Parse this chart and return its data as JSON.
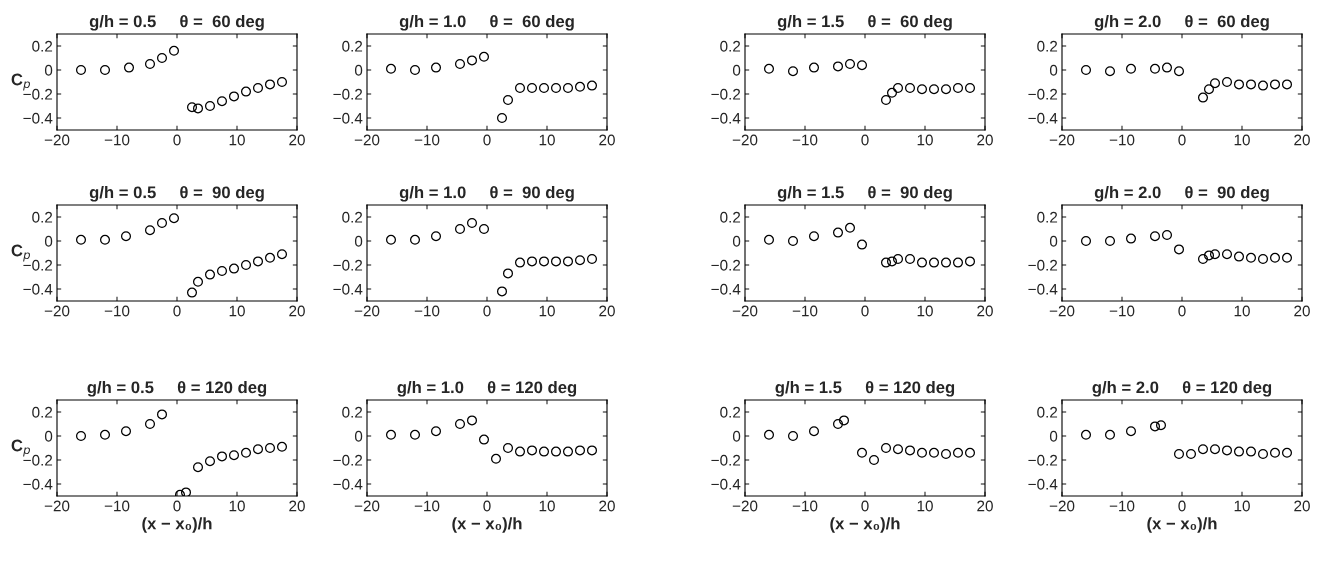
{
  "chart_data": [
    {
      "type": "scatter",
      "title": "g/h = 0.5     θ =  60 deg",
      "ylabel": "C$_{p}$",
      "xlim": [
        -20,
        20
      ],
      "xticks": [
        -20,
        -10,
        0,
        10,
        20
      ],
      "ylim": [
        -0.5,
        0.3
      ],
      "yticks": [
        -0.4,
        -0.2,
        0,
        0.2
      ],
      "marker": "circle",
      "grid": false,
      "legend": false,
      "series": [
        {
          "color": "#000000",
          "x": [
            -16,
            -12,
            -8,
            -4.5,
            -2.5,
            -0.5,
            2.5,
            3.5,
            5.5,
            7.5,
            9.5,
            11.5,
            13.5,
            15.5,
            17.5
          ],
          "values": [
            0.0,
            0.0,
            0.02,
            0.05,
            0.1,
            0.16,
            -0.31,
            -0.32,
            -0.3,
            -0.26,
            -0.22,
            -0.18,
            -0.15,
            -0.12,
            -0.1
          ]
        }
      ]
    },
    {
      "type": "scatter",
      "title": "g/h = 1.0     θ =  60 deg",
      "xlim": [
        -20,
        20
      ],
      "xticks": [
        -20,
        -10,
        0,
        10,
        20
      ],
      "ylim": [
        -0.5,
        0.3
      ],
      "yticks": [
        -0.4,
        -0.2,
        0,
        0.2
      ],
      "marker": "circle",
      "grid": false,
      "legend": false,
      "series": [
        {
          "color": "#000000",
          "x": [
            -16,
            -12,
            -8.5,
            -4.5,
            -2.5,
            -0.5,
            2.5,
            3.5,
            5.5,
            7.5,
            9.5,
            11.5,
            13.5,
            15.5,
            17.5
          ],
          "values": [
            0.01,
            0.0,
            0.02,
            0.05,
            0.08,
            0.11,
            -0.4,
            -0.25,
            -0.15,
            -0.15,
            -0.15,
            -0.15,
            -0.15,
            -0.14,
            -0.13
          ]
        }
      ]
    },
    {
      "type": "scatter",
      "title": "g/h = 1.5     θ =  60 deg",
      "xlim": [
        -20,
        20
      ],
      "xticks": [
        -20,
        -10,
        0,
        10,
        20
      ],
      "ylim": [
        -0.5,
        0.3
      ],
      "yticks": [
        -0.4,
        -0.2,
        0,
        0.2
      ],
      "marker": "circle",
      "grid": false,
      "legend": false,
      "series": [
        {
          "color": "#000000",
          "x": [
            -16,
            -12,
            -8.5,
            -4.5,
            -2.5,
            -0.5,
            3.5,
            4.5,
            5.5,
            7.5,
            9.5,
            11.5,
            13.5,
            15.5,
            17.5
          ],
          "values": [
            0.01,
            -0.01,
            0.02,
            0.03,
            0.05,
            0.04,
            -0.25,
            -0.19,
            -0.15,
            -0.15,
            -0.16,
            -0.16,
            -0.16,
            -0.15,
            -0.15
          ]
        }
      ]
    },
    {
      "type": "scatter",
      "title": "g/h = 2.0     θ =  60 deg",
      "xlim": [
        -20,
        20
      ],
      "xticks": [
        -20,
        -10,
        0,
        10,
        20
      ],
      "ylim": [
        -0.5,
        0.3
      ],
      "yticks": [
        -0.4,
        -0.2,
        0,
        0.2
      ],
      "marker": "circle",
      "grid": false,
      "legend": false,
      "series": [
        {
          "color": "#000000",
          "x": [
            -16,
            -12,
            -8.5,
            -4.5,
            -2.5,
            -0.5,
            3.5,
            4.5,
            5.5,
            7.5,
            9.5,
            11.5,
            13.5,
            15.5,
            17.5
          ],
          "values": [
            0.0,
            -0.01,
            0.01,
            0.01,
            0.02,
            -0.01,
            -0.23,
            -0.16,
            -0.11,
            -0.1,
            -0.12,
            -0.12,
            -0.13,
            -0.12,
            -0.12
          ]
        }
      ]
    },
    {
      "type": "scatter",
      "title": "g/h = 0.5     θ =  90 deg",
      "ylabel": "C$_{p}$",
      "xlim": [
        -20,
        20
      ],
      "xticks": [
        -20,
        -10,
        0,
        10,
        20
      ],
      "ylim": [
        -0.5,
        0.3
      ],
      "yticks": [
        -0.4,
        -0.2,
        0,
        0.2
      ],
      "marker": "circle",
      "grid": false,
      "legend": false,
      "series": [
        {
          "color": "#000000",
          "x": [
            -16,
            -12,
            -8.5,
            -4.5,
            -2.5,
            -0.5,
            2.5,
            3.5,
            5.5,
            7.5,
            9.5,
            11.5,
            13.5,
            15.5,
            17.5
          ],
          "values": [
            0.01,
            0.01,
            0.04,
            0.09,
            0.15,
            0.19,
            -0.43,
            -0.34,
            -0.28,
            -0.25,
            -0.23,
            -0.2,
            -0.17,
            -0.14,
            -0.11
          ]
        }
      ]
    },
    {
      "type": "scatter",
      "title": "g/h = 1.0     θ =  90 deg",
      "xlim": [
        -20,
        20
      ],
      "xticks": [
        -20,
        -10,
        0,
        10,
        20
      ],
      "ylim": [
        -0.5,
        0.3
      ],
      "yticks": [
        -0.4,
        -0.2,
        0,
        0.2
      ],
      "marker": "circle",
      "grid": false,
      "legend": false,
      "series": [
        {
          "color": "#000000",
          "x": [
            -16,
            -12,
            -8.5,
            -4.5,
            -2.5,
            -0.5,
            2.5,
            3.5,
            5.5,
            7.5,
            9.5,
            11.5,
            13.5,
            15.5,
            17.5
          ],
          "values": [
            0.01,
            0.01,
            0.04,
            0.1,
            0.15,
            0.1,
            -0.42,
            -0.27,
            -0.18,
            -0.17,
            -0.17,
            -0.17,
            -0.17,
            -0.16,
            -0.15
          ]
        }
      ]
    },
    {
      "type": "scatter",
      "title": "g/h = 1.5     θ =  90 deg",
      "xlim": [
        -20,
        20
      ],
      "xticks": [
        -20,
        -10,
        0,
        10,
        20
      ],
      "ylim": [
        -0.5,
        0.3
      ],
      "yticks": [
        -0.4,
        -0.2,
        0,
        0.2
      ],
      "marker": "circle",
      "grid": false,
      "legend": false,
      "series": [
        {
          "color": "#000000",
          "x": [
            -16,
            -12,
            -8.5,
            -4.5,
            -2.5,
            -0.5,
            3.5,
            4.5,
            5.5,
            7.5,
            9.5,
            11.5,
            13.5,
            15.5,
            17.5
          ],
          "values": [
            0.01,
            0.0,
            0.04,
            0.07,
            0.11,
            -0.03,
            -0.18,
            -0.17,
            -0.15,
            -0.15,
            -0.18,
            -0.18,
            -0.18,
            -0.18,
            -0.17
          ]
        }
      ]
    },
    {
      "type": "scatter",
      "title": "g/h = 2.0     θ =  90 deg",
      "xlim": [
        -20,
        20
      ],
      "xticks": [
        -20,
        -10,
        0,
        10,
        20
      ],
      "ylim": [
        -0.5,
        0.3
      ],
      "yticks": [
        -0.4,
        -0.2,
        0,
        0.2
      ],
      "marker": "circle",
      "grid": false,
      "legend": false,
      "series": [
        {
          "color": "#000000",
          "x": [
            -16,
            -12,
            -8.5,
            -4.5,
            -2.5,
            -0.5,
            3.5,
            4.5,
            5.5,
            7.5,
            9.5,
            11.5,
            13.5,
            15.5,
            17.5
          ],
          "values": [
            0.0,
            0.0,
            0.02,
            0.04,
            0.05,
            -0.07,
            -0.15,
            -0.12,
            -0.11,
            -0.11,
            -0.13,
            -0.14,
            -0.15,
            -0.14,
            -0.14
          ]
        }
      ]
    },
    {
      "type": "scatter",
      "title": "g/h = 0.5     θ = 120 deg",
      "ylabel": "C$_{p}$",
      "xlabel": "(x − x₀)/h",
      "xlim": [
        -20,
        20
      ],
      "xticks": [
        -20,
        -10,
        0,
        10,
        20
      ],
      "ylim": [
        -0.5,
        0.3
      ],
      "yticks": [
        -0.4,
        -0.2,
        0,
        0.2
      ],
      "marker": "circle",
      "grid": false,
      "legend": false,
      "series": [
        {
          "color": "#000000",
          "x": [
            -16,
            -12,
            -8.5,
            -4.5,
            -2.5,
            0.5,
            1.5,
            3.5,
            5.5,
            7.5,
            9.5,
            11.5,
            13.5,
            15.5,
            17.5
          ],
          "values": [
            0.0,
            0.01,
            0.04,
            0.1,
            0.18,
            -0.49,
            -0.47,
            -0.26,
            -0.21,
            -0.17,
            -0.16,
            -0.14,
            -0.11,
            -0.1,
            -0.09
          ]
        }
      ]
    },
    {
      "type": "scatter",
      "title": "g/h = 1.0     θ = 120 deg",
      "xlabel": "(x − x₀)/h",
      "xlim": [
        -20,
        20
      ],
      "xticks": [
        -20,
        -10,
        0,
        10,
        20
      ],
      "ylim": [
        -0.5,
        0.3
      ],
      "yticks": [
        -0.4,
        -0.2,
        0,
        0.2
      ],
      "marker": "circle",
      "grid": false,
      "legend": false,
      "series": [
        {
          "color": "#000000",
          "x": [
            -16,
            -12,
            -8.5,
            -4.5,
            -2.5,
            -0.5,
            1.5,
            3.5,
            5.5,
            7.5,
            9.5,
            11.5,
            13.5,
            15.5,
            17.5
          ],
          "values": [
            0.01,
            0.01,
            0.04,
            0.1,
            0.13,
            -0.03,
            -0.19,
            -0.1,
            -0.13,
            -0.12,
            -0.13,
            -0.13,
            -0.13,
            -0.12,
            -0.12
          ]
        }
      ]
    },
    {
      "type": "scatter",
      "title": "g/h = 1.5     θ = 120 deg",
      "xlabel": "(x − x₀)/h",
      "xlim": [
        -20,
        20
      ],
      "xticks": [
        -20,
        -10,
        0,
        10,
        20
      ],
      "ylim": [
        -0.5,
        0.3
      ],
      "yticks": [
        -0.4,
        -0.2,
        0,
        0.2
      ],
      "marker": "circle",
      "grid": false,
      "legend": false,
      "series": [
        {
          "color": "#000000",
          "x": [
            -16,
            -12,
            -8.5,
            -4.5,
            -3.5,
            -0.5,
            1.5,
            3.5,
            5.5,
            7.5,
            9.5,
            11.5,
            13.5,
            15.5,
            17.5
          ],
          "values": [
            0.01,
            0.0,
            0.04,
            0.1,
            0.13,
            -0.14,
            -0.2,
            -0.1,
            -0.11,
            -0.12,
            -0.14,
            -0.14,
            -0.15,
            -0.14,
            -0.14
          ]
        }
      ]
    },
    {
      "type": "scatter",
      "title": "g/h = 2.0     θ = 120 deg",
      "xlabel": "(x − x₀)/h",
      "xlim": [
        -20,
        20
      ],
      "xticks": [
        -20,
        -10,
        0,
        10,
        20
      ],
      "ylim": [
        -0.5,
        0.3
      ],
      "yticks": [
        -0.4,
        -0.2,
        0,
        0.2
      ],
      "marker": "circle",
      "grid": false,
      "legend": false,
      "series": [
        {
          "color": "#000000",
          "x": [
            -16,
            -12,
            -8.5,
            -4.5,
            -3.5,
            -0.5,
            1.5,
            3.5,
            5.5,
            7.5,
            9.5,
            11.5,
            13.5,
            15.5,
            17.5
          ],
          "values": [
            0.01,
            0.01,
            0.04,
            0.08,
            0.09,
            -0.15,
            -0.15,
            -0.11,
            -0.11,
            -0.12,
            -0.13,
            -0.13,
            -0.15,
            -0.14,
            -0.14
          ]
        }
      ]
    }
  ]
}
